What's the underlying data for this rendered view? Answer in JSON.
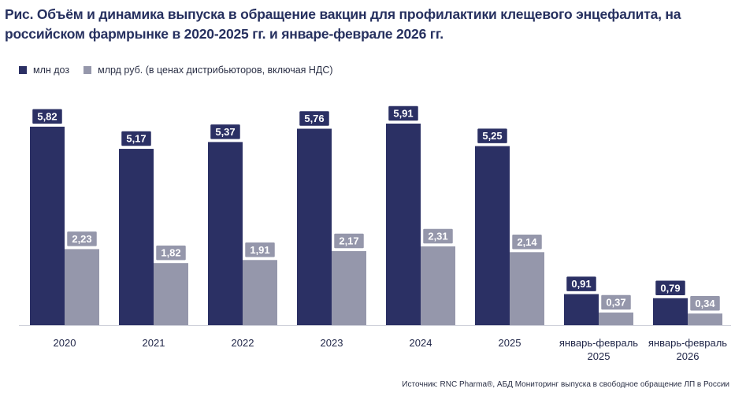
{
  "title_line1": "Рис. Объём и динамика выпуска в обращение вакцин для профилактики клещевого энцефалита, на",
  "title_line2": "российском фармрынке в 2020-2025 гг. и январе-феврале 2026 гг.",
  "source": "Источник: RNC Pharma®, АБД Мониторинг выпуска в свободное обращение ЛП в России",
  "colors": {
    "series1": "#2b3064",
    "series2": "#9597ab",
    "axis": "#cfd1da"
  },
  "chart_data": {
    "type": "bar",
    "title": "Рис. Объём и динамика выпуска в обращение вакцин для профилактики клещевого энцефалита, на российском фармрынке в 2020-2025 гг. и январе-феврале 2026 гг.",
    "categories": [
      [
        "2020"
      ],
      [
        "2021"
      ],
      [
        "2022"
      ],
      [
        "2023"
      ],
      [
        "2024"
      ],
      [
        "2025"
      ],
      [
        "январь-февраль",
        "2025"
      ],
      [
        "январь-февраль",
        "2026"
      ]
    ],
    "series": [
      {
        "name": "млн доз",
        "values": [
          5.82,
          5.17,
          5.37,
          5.76,
          5.91,
          5.25,
          0.91,
          0.79
        ],
        "labels": [
          "5,82",
          "5,17",
          "5,37",
          "5,76",
          "5,91",
          "5,25",
          "0,91",
          "0,79"
        ]
      },
      {
        "name": "млрд руб. (в ценах дистрибьюторов, включая НДС)",
        "values": [
          2.23,
          1.82,
          1.91,
          2.17,
          2.31,
          2.14,
          0.37,
          0.34
        ],
        "labels": [
          "2,23",
          "1,82",
          "1,91",
          "2,17",
          "2,31",
          "2,14",
          "0,37",
          "0,34"
        ]
      }
    ],
    "legend_position": "top-left",
    "grid": false,
    "ylim": [
      0,
      5.91
    ]
  }
}
